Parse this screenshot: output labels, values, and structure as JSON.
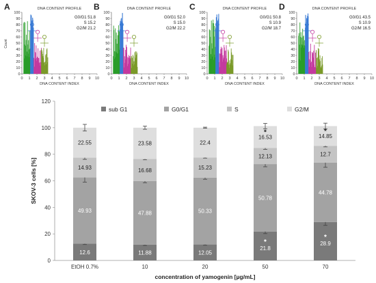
{
  "chart_data": [
    {
      "type": "histogram",
      "panel": "A",
      "title": "DNA CONTENT PROFILE",
      "ylabel": "Count",
      "xlabel": "DNA CONTENT INDEX",
      "xticks": [
        "0",
        "1",
        "2",
        "3",
        "4",
        "5",
        "6",
        "7",
        "8",
        "9",
        "10"
      ],
      "yticks": [
        "0",
        "10",
        "20",
        "30",
        "40",
        "50",
        "60",
        "70",
        "80",
        "90",
        "100"
      ],
      "stats": [
        {
          "label": "G0/G1",
          "value": "51.8"
        },
        {
          "label": "S",
          "value": "15.2"
        },
        {
          "label": "G2/M",
          "value": "21.2"
        }
      ],
      "colors": {
        "subG1": "#2a9d2a",
        "G0G1": "#3a7bd5",
        "S": "#c4399e",
        "G2M": "#7a9a28"
      }
    },
    {
      "type": "histogram",
      "panel": "B",
      "title": "DNA CONTENT PROFILE",
      "xlabel": "DNA CONTENT INDEX",
      "xticks": [
        "0",
        "1",
        "2",
        "3",
        "4",
        "5",
        "6",
        "7",
        "8",
        "9",
        "10"
      ],
      "yticks": [
        "0",
        "10",
        "20",
        "30",
        "40",
        "50",
        "60",
        "70",
        "80",
        "90",
        "100"
      ],
      "stats": [
        {
          "label": "G0/G1",
          "value": "52.0"
        },
        {
          "label": "S",
          "value": "15.0"
        },
        {
          "label": "G2/M",
          "value": "22.2"
        }
      ],
      "colors": {
        "subG1": "#2a9d2a",
        "G0G1": "#3a7bd5",
        "S": "#c4399e",
        "G2M": "#7a9a28"
      }
    },
    {
      "type": "histogram",
      "panel": "C",
      "title": "DNA CONTENT PROFILE",
      "xlabel": "DNA CONTENT INDEX",
      "xticks": [
        "0",
        "1",
        "2",
        "3",
        "4",
        "5",
        "6",
        "7",
        "8",
        "9",
        "10"
      ],
      "yticks": [
        "0",
        "10",
        "20",
        "30",
        "40",
        "50",
        "60",
        "70",
        "80",
        "90",
        "100"
      ],
      "stats": [
        {
          "label": "G0/G1",
          "value": "50.8"
        },
        {
          "label": "S",
          "value": "10.9"
        },
        {
          "label": "G2/M",
          "value": "18.7"
        }
      ],
      "colors": {
        "subG1": "#2a9d2a",
        "G0G1": "#3a7bd5",
        "S": "#c4399e",
        "G2M": "#7a9a28"
      }
    },
    {
      "type": "histogram",
      "panel": "D",
      "title": "DNA CONTENT PROFILE",
      "xlabel": "DNA CONTENT INDEX",
      "xticks": [
        "0",
        "1",
        "2",
        "3",
        "4",
        "5",
        "6",
        "7",
        "8",
        "9",
        "10"
      ],
      "yticks": [
        "0",
        "10",
        "20",
        "30",
        "40",
        "50",
        "60",
        "70",
        "80",
        "90",
        "100"
      ],
      "stats": [
        {
          "label": "G0/G1",
          "value": "43.5"
        },
        {
          "label": "S",
          "value": "10.9"
        },
        {
          "label": "G2/M",
          "value": "16.5"
        }
      ],
      "colors": {
        "subG1": "#2a9d2a",
        "G0G1": "#3a7bd5",
        "S": "#c4399e",
        "G2M": "#7a9a28"
      }
    },
    {
      "type": "bar",
      "stacked": true,
      "categories": [
        "EtOH 0.7%",
        "10",
        "20",
        "50",
        "70"
      ],
      "series": [
        {
          "name": "sub G1",
          "color": "#7a7a7a",
          "values": [
            12.6,
            11.88,
            12.05,
            21.8,
            28.9
          ],
          "labels": [
            "12.6",
            "11.88",
            "12.05",
            "21.8",
            "28.9"
          ],
          "errors": [
            0.6,
            0.6,
            0.6,
            1.6,
            2.5
          ],
          "significant": [
            false,
            false,
            false,
            true,
            true
          ]
        },
        {
          "name": "G0/G1",
          "color": "#a3a3a3",
          "values": [
            49.93,
            47.88,
            50.33,
            50.78,
            44.78
          ],
          "labels": [
            "49.93",
            "47.88",
            "50.33",
            "50.78",
            "44.78"
          ],
          "errors": [
            3.5,
            1.2,
            1.2,
            2.0,
            3.5
          ],
          "significant": [
            false,
            false,
            false,
            false,
            false
          ]
        },
        {
          "name": "S",
          "color": "#c4c4c4",
          "values": [
            14.93,
            16.68,
            15.23,
            12.13,
            12.7
          ],
          "labels": [
            "14.93",
            "16.68",
            "15.23",
            "12.13",
            "12.7"
          ],
          "errors": [
            1.3,
            0.6,
            0.5,
            1.0,
            0.8
          ],
          "significant": [
            false,
            false,
            false,
            false,
            false
          ]
        },
        {
          "name": "G2/M",
          "color": "#dedede",
          "values": [
            22.55,
            23.58,
            22.4,
            16.53,
            14.85
          ],
          "labels": [
            "22.55",
            "23.58",
            "22.4",
            "16.53",
            "14.85"
          ],
          "errors": [
            2.5,
            1.2,
            0.4,
            2.0,
            2.2
          ],
          "significant": [
            false,
            false,
            false,
            true,
            true
          ]
        }
      ],
      "ylabel": "SKOV-3 cells [%]",
      "xlabel": "concentration of yamogenin [µg/mL]",
      "ylim": [
        0,
        120
      ],
      "yticks": [
        "0",
        "20",
        "40",
        "60",
        "80",
        "100",
        "120"
      ],
      "significance_marker": "*",
      "legend_position": "top"
    }
  ]
}
